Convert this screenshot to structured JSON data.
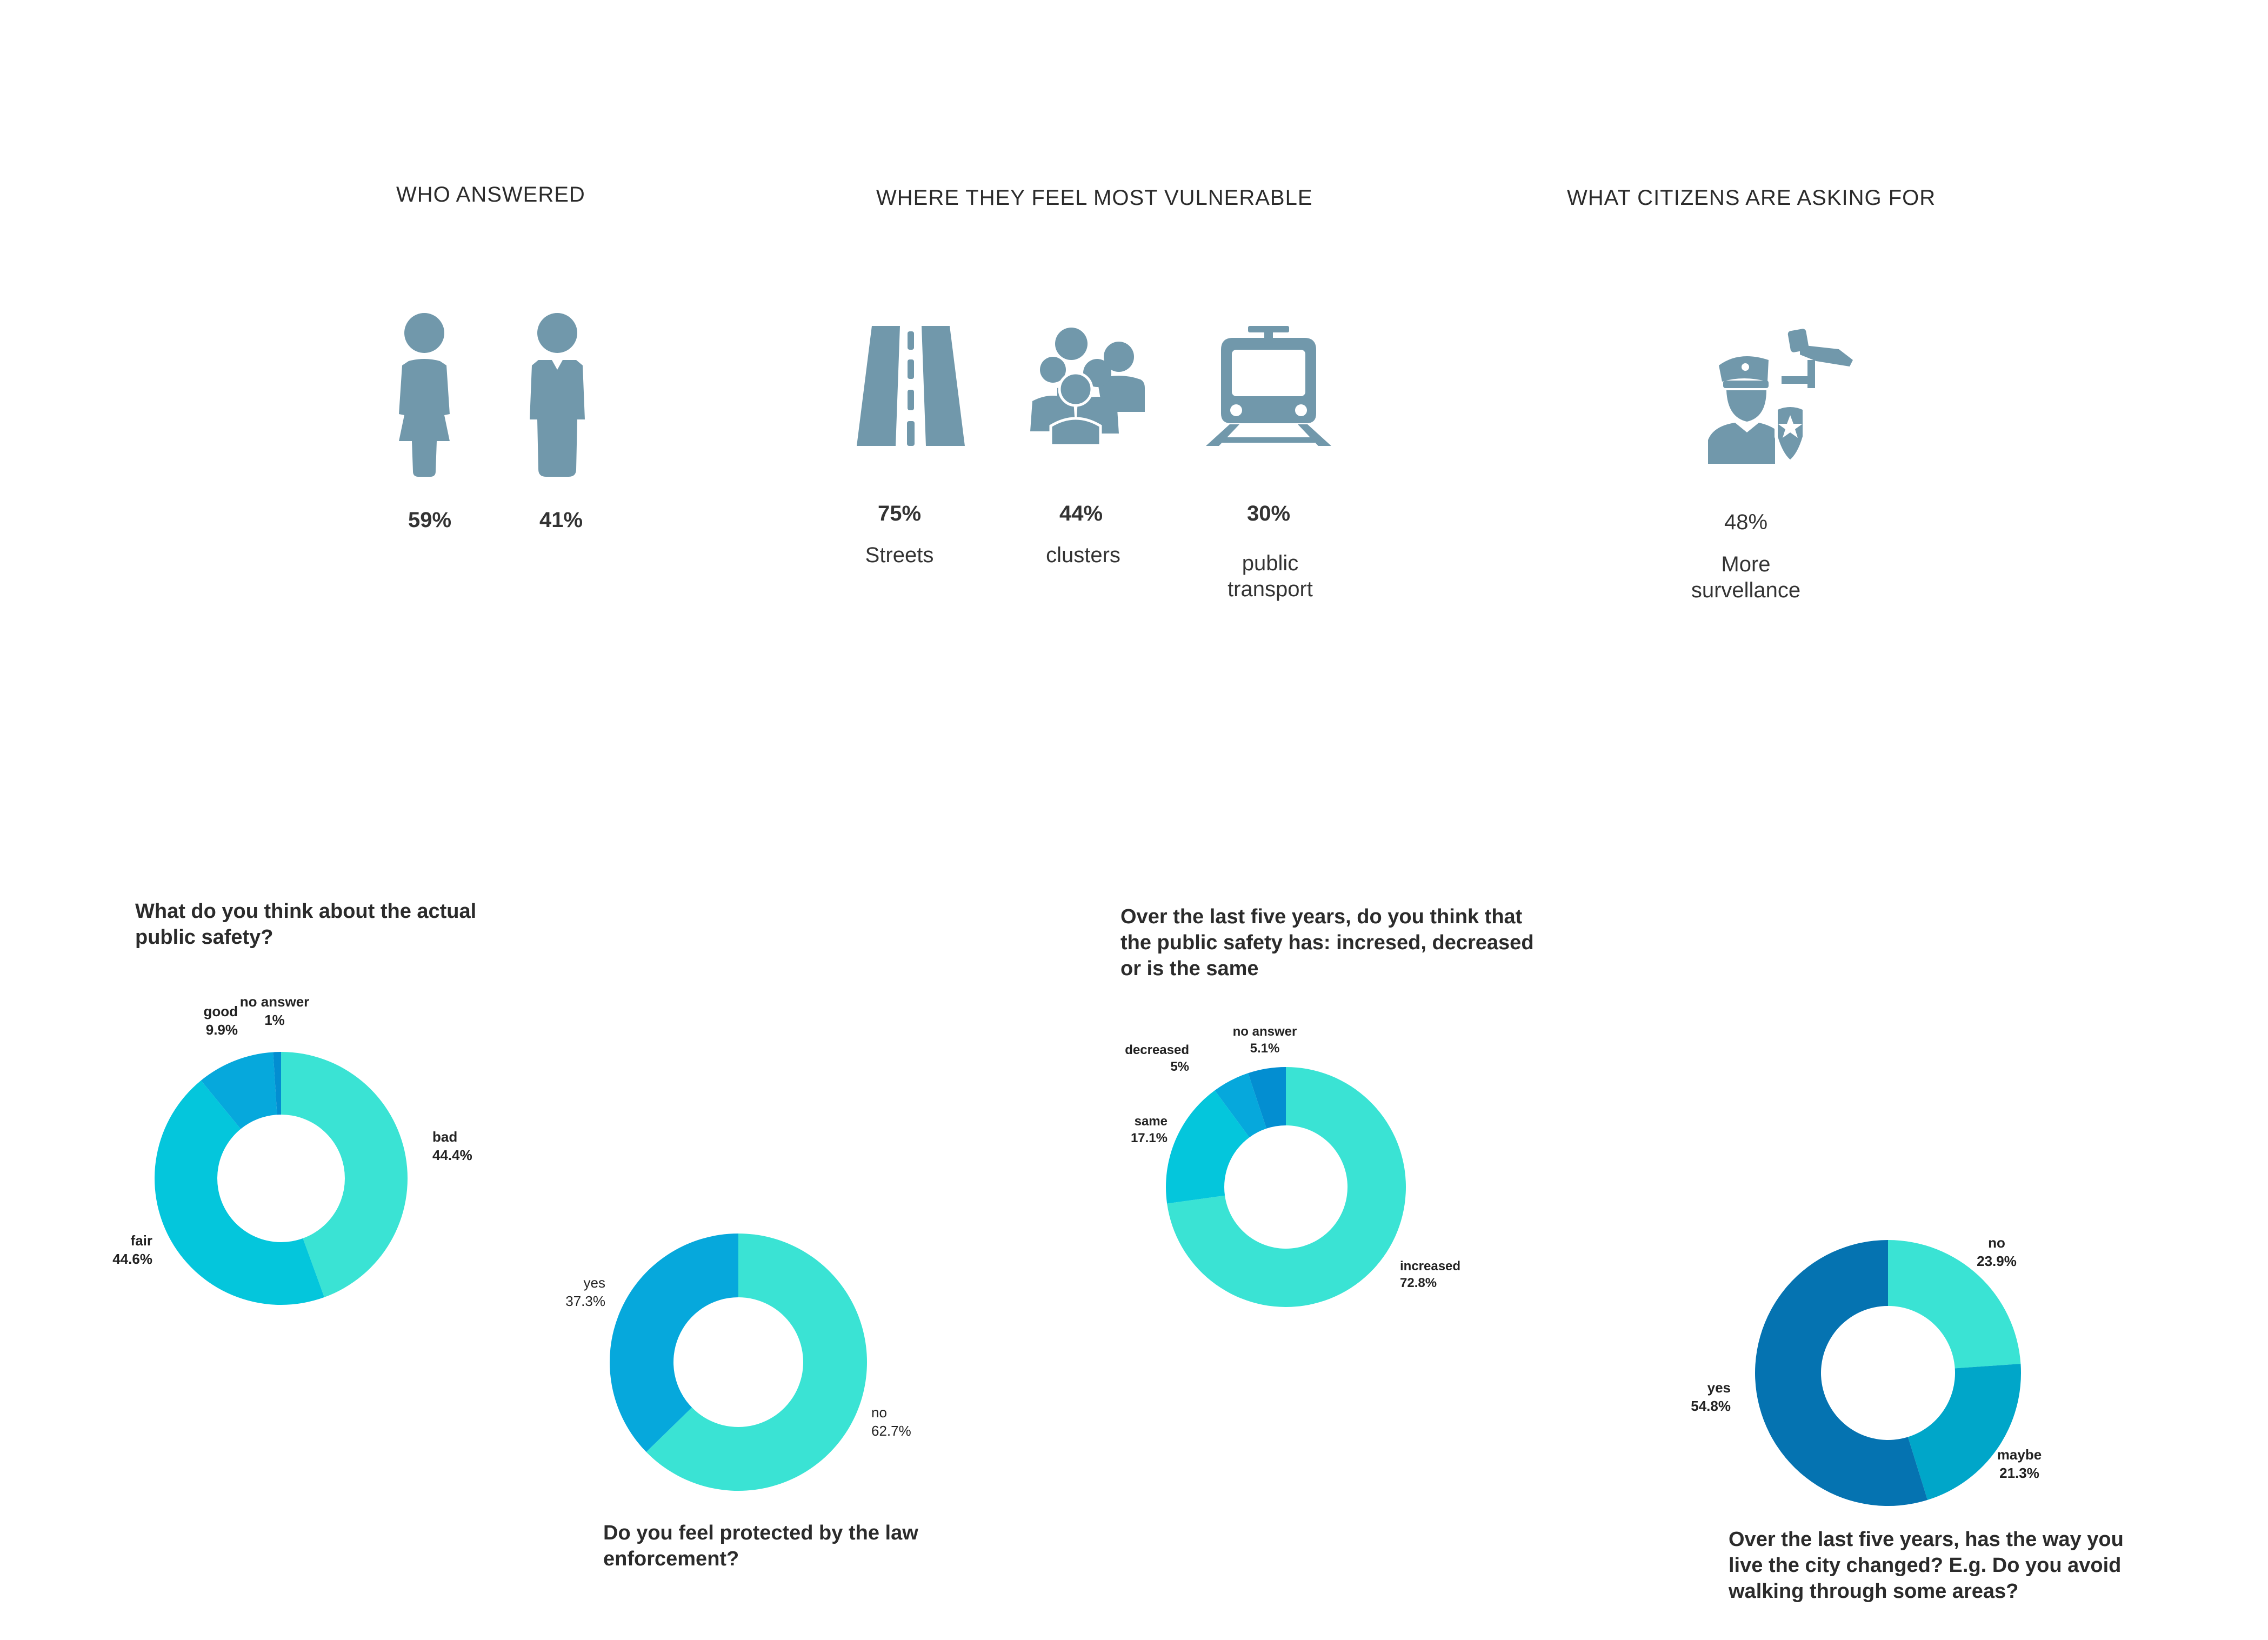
{
  "colors": {
    "icon": "#7198ab",
    "turquoise": "#3ae3d4",
    "cyan": "#04c6dc",
    "sky": "#06a8dc",
    "blue": "#038ed1",
    "teal_blue": "#00a6c9",
    "dark_blue": "#0573b1"
  },
  "sections": {
    "who": {
      "title": "WHO ANSWERED",
      "items": [
        {
          "icon": "woman-icon",
          "pct": "59%"
        },
        {
          "icon": "man-icon",
          "pct": "41%"
        }
      ]
    },
    "where": {
      "title": "WHERE THEY FEEL MOST VULNERABLE",
      "items": [
        {
          "icon": "road-icon",
          "pct": "75%",
          "label": "Streets"
        },
        {
          "icon": "crowd-icon",
          "pct": "44%",
          "label": "clusters"
        },
        {
          "icon": "train-icon",
          "pct": "30%",
          "label": "public transport"
        }
      ]
    },
    "asking": {
      "title": "WHAT CITIZENS ARE ASKING FOR",
      "items": [
        {
          "icon": "police-surveillance-icon",
          "pct": "48%",
          "label": "More survellance"
        }
      ]
    }
  },
  "chart_data": [
    {
      "type": "pie",
      "title": "What do you think about the actual public safety?",
      "categories": [
        "bad",
        "fair",
        "good",
        "no answer"
      ],
      "values": [
        44.4,
        44.6,
        9.9,
        1
      ],
      "labels": [
        "44.4%",
        "44.6%",
        "9.9%",
        "1%"
      ],
      "colors": [
        "#3ae3d4",
        "#04c6dc",
        "#06a8dc",
        "#038ed1"
      ]
    },
    {
      "type": "pie",
      "title": "Do you feel protected by the law enforcement?",
      "categories": [
        "no",
        "yes"
      ],
      "values": [
        62.7,
        37.3
      ],
      "labels": [
        "62.7%",
        "37.3%"
      ],
      "colors": [
        "#3ae3d4",
        "#06a8dc"
      ]
    },
    {
      "type": "pie",
      "title": "Over the last five years, do you think that the public safety has: incresed, decreased or is the same",
      "categories": [
        "increased",
        "same",
        "decreased",
        "no answer"
      ],
      "values": [
        72.8,
        17.1,
        5,
        5.1
      ],
      "labels": [
        "72.8%",
        "17.1%",
        "5%",
        "5.1%"
      ],
      "colors": [
        "#3ae3d4",
        "#04c6dc",
        "#06a8dc",
        "#038ed1"
      ]
    },
    {
      "type": "pie",
      "title": "Over the last five years, has the way you live the city changed? E.g. Do you avoid walking through some areas?",
      "categories": [
        "no",
        "maybe",
        "yes"
      ],
      "values": [
        23.9,
        21.3,
        54.8
      ],
      "labels": [
        "23.9%",
        "21.3%",
        "54.8%"
      ],
      "colors": [
        "#3ae3d4",
        "#00a6c9",
        "#0573b1"
      ]
    }
  ]
}
